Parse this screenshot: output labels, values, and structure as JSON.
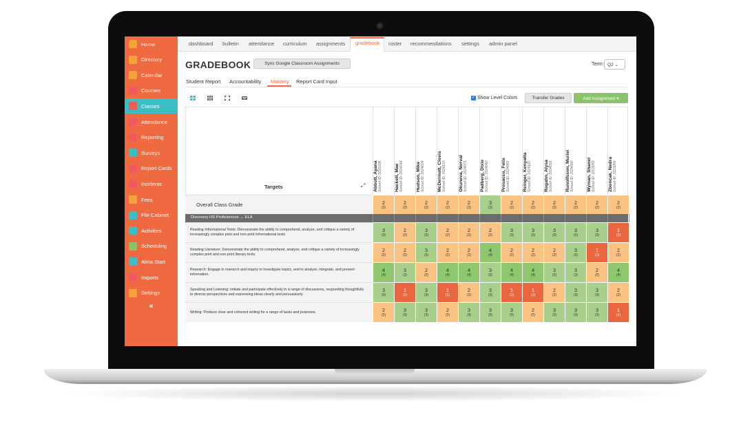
{
  "sidebar": {
    "items": [
      {
        "label": "Home",
        "icon": "home-icon",
        "color": "#f4a23a",
        "active": false
      },
      {
        "label": "Directory",
        "icon": "directory-icon",
        "color": "#f4a23a",
        "active": false
      },
      {
        "label": "Calendar",
        "icon": "calendar-icon",
        "color": "#f4a23a",
        "active": false
      },
      {
        "label": "Courses",
        "icon": "courses-icon",
        "color": "#ef5a5a",
        "active": false
      },
      {
        "label": "Classes",
        "icon": "classes-icon",
        "color": "#ef5a5a",
        "active": true
      },
      {
        "label": "Attendance",
        "icon": "attendance-icon",
        "color": "#ef5a5a",
        "active": false
      },
      {
        "label": "Reporting",
        "icon": "reporting-icon",
        "color": "#ef5a5a",
        "active": false
      },
      {
        "label": "Surveys",
        "icon": "surveys-icon",
        "color": "#3bbfc4",
        "active": false
      },
      {
        "label": "Report Cards",
        "icon": "report-cards-icon",
        "color": "#ef5a5a",
        "active": false
      },
      {
        "label": "Incidents",
        "icon": "incidents-icon",
        "color": "#ef5a5a",
        "active": false
      },
      {
        "label": "Fees",
        "icon": "fees-icon",
        "color": "#f4a23a",
        "active": false
      },
      {
        "label": "File Cabinet",
        "icon": "file-cabinet-icon",
        "color": "#3bbfc4",
        "active": false
      },
      {
        "label": "Activities",
        "icon": "activities-icon",
        "color": "#3bbfc4",
        "active": false
      },
      {
        "label": "Scheduling",
        "icon": "scheduling-icon",
        "color": "#8cc36a",
        "active": false
      },
      {
        "label": "Alma Start",
        "icon": "alma-start-icon",
        "color": "#3bbfc4",
        "active": false
      },
      {
        "label": "Imports",
        "icon": "imports-icon",
        "color": "#ef5a5a",
        "active": false
      },
      {
        "label": "Settings",
        "icon": "settings-icon",
        "color": "#f4a23a",
        "active": false
      }
    ],
    "collapse_label": "«"
  },
  "topnav": {
    "tabs": [
      "dashboard",
      "bulletin",
      "attendance",
      "curriculum",
      "assignments",
      "gradebook",
      "roster",
      "recommendations",
      "settings",
      "admin panel"
    ],
    "active": "gradebook"
  },
  "header": {
    "title": "GRADEBOOK",
    "sync_button": "Sync Google Classroom Assignments",
    "term_label": "Term:",
    "term_value": "Q2 ⌄"
  },
  "subtabs": {
    "items": [
      "Student Report",
      "Accountability",
      "Mastery",
      "Report Card Input"
    ],
    "active": "Mastery"
  },
  "toolbar": {
    "view_icons": [
      "grid-view-icon",
      "dense-grid-icon",
      "fullscreen-icon",
      "keyboard-icon"
    ],
    "show_level_colors_label": "Show Level Colors",
    "show_level_colors_checked": true,
    "transfer_button": "Transfer Grades",
    "add_button": "Add Assignment ▾"
  },
  "table": {
    "targets_header": "Targets",
    "students": [
      {
        "name": "Abbott, Ayana",
        "id": "School ID: 2025206"
      },
      {
        "name": "Hackett, Mae",
        "id": "School ID: 2024016"
      },
      {
        "name": "Hudson, Mike",
        "id": "School ID: 2024024"
      },
      {
        "name": "McDermott, Clovis",
        "id": "School ID: 2024153"
      },
      {
        "name": "Okuneva, Norval",
        "id": "School ID: 2024071"
      },
      {
        "name": "Padberg, Dixie",
        "id": "School ID: 2024040"
      },
      {
        "name": "Prosacco, Felix",
        "id": "School ID: 2024065"
      },
      {
        "name": "Reinger, Kenyatta",
        "id": "School ID: 2024110"
      },
      {
        "name": "Rogahn, Alysa",
        "id": "School ID: 2024059"
      },
      {
        "name": "Runolfsson, Muriel",
        "id": "School ID: 2024000"
      },
      {
        "name": "Wyman, Shanel",
        "id": "School ID: 2023059"
      },
      {
        "name": "Zboncak, Nedra",
        "id": "School ID: 2023059"
      }
    ],
    "overall_label": "Overall Class Grade",
    "overall": [
      [
        "2",
        "(2)"
      ],
      [
        "2",
        "(2)"
      ],
      [
        "2",
        "(2)"
      ],
      [
        "2",
        "(2)"
      ],
      [
        "2",
        "(2)"
      ],
      [
        "3",
        "(3)"
      ],
      [
        "2",
        "(2)"
      ],
      [
        "2",
        "(2)"
      ],
      [
        "2",
        "(2)"
      ],
      [
        "2",
        "(2)"
      ],
      [
        "2",
        "(2)"
      ],
      [
        "2",
        "(2)"
      ]
    ],
    "section_label": "Discovery HS Proficiencies → ELA",
    "rows": [
      {
        "label": "Reading Informational Texts: Demonstrate the ability to comprehend, analyze, and critique a variety of increasingly complex print and non-print informational texts",
        "cells": [
          [
            "3",
            "(3)"
          ],
          [
            "2",
            "(2)"
          ],
          [
            "3",
            "(3)"
          ],
          [
            "2",
            "(2)"
          ],
          [
            "2",
            "(2)"
          ],
          [
            "2",
            "(2)"
          ],
          [
            "3",
            "(3)"
          ],
          [
            "3",
            "(3)"
          ],
          [
            "3",
            "(3)"
          ],
          [
            "3",
            "(3)"
          ],
          [
            "3",
            "(3)"
          ],
          [
            "1",
            "(1)"
          ]
        ]
      },
      {
        "label": "Reading Literature: Demonstrate the ability to comprehend, analyze, and critique a variety of increasingly complex print and non-print literary texts.",
        "cells": [
          [
            "2",
            "(2)"
          ],
          [
            "2",
            "(2)"
          ],
          [
            "3",
            "(3)"
          ],
          [
            "2",
            "(2)"
          ],
          [
            "2",
            "(2)"
          ],
          [
            "4",
            "(4)"
          ],
          [
            "2",
            "(2)"
          ],
          [
            "2",
            "(2)"
          ],
          [
            "2",
            "(2)"
          ],
          [
            "3",
            "(3)"
          ],
          [
            "1",
            "(1)"
          ],
          [
            "2",
            "(2)"
          ]
        ]
      },
      {
        "label": "Research: Engage in research and inquiry to investigate topics, and to analyze, integrate, and present information.",
        "cells": [
          [
            "4",
            "(4)"
          ],
          [
            "3",
            "(3)"
          ],
          [
            "2",
            "(2)"
          ],
          [
            "4",
            "(4)"
          ],
          [
            "4",
            "(4)"
          ],
          [
            "3",
            "(3)"
          ],
          [
            "4",
            "(4)"
          ],
          [
            "4",
            "(4)"
          ],
          [
            "3",
            "(3)"
          ],
          [
            "3",
            "(3)"
          ],
          [
            "2",
            "(2)"
          ],
          [
            "4",
            "(4)"
          ]
        ]
      },
      {
        "label": "Speaking and Listening: Initiate and participate effectively in a range of discussions, responding thoughtfully to diverse perspectives and expressing ideas clearly and persuasively.",
        "cells": [
          [
            "3",
            "(3)"
          ],
          [
            "1",
            "(1)"
          ],
          [
            "3",
            "(3)"
          ],
          [
            "1",
            "(1)"
          ],
          [
            "2",
            "(2)"
          ],
          [
            "3",
            "(3)"
          ],
          [
            "1",
            "(1)"
          ],
          [
            "1",
            "(1)"
          ],
          [
            "2",
            "(2)"
          ],
          [
            "3",
            "(3)"
          ],
          [
            "3",
            "(3)"
          ],
          [
            "2",
            "(2)"
          ]
        ]
      },
      {
        "label": "Writing: Produce clear and coherent writing for a range of tasks and purposes.",
        "cells": [
          [
            "2",
            "(2)"
          ],
          [
            "3",
            "(3)"
          ],
          [
            "3",
            "(3)"
          ],
          [
            "2",
            "(2)"
          ],
          [
            "3",
            "(3)"
          ],
          [
            "3",
            "(3)"
          ],
          [
            "3",
            "(3)"
          ],
          [
            "2",
            "(2)"
          ],
          [
            "3",
            "(3)"
          ],
          [
            "3",
            "(3)"
          ],
          [
            "3",
            "(3)"
          ],
          [
            "1",
            "(1)"
          ]
        ]
      }
    ]
  }
}
